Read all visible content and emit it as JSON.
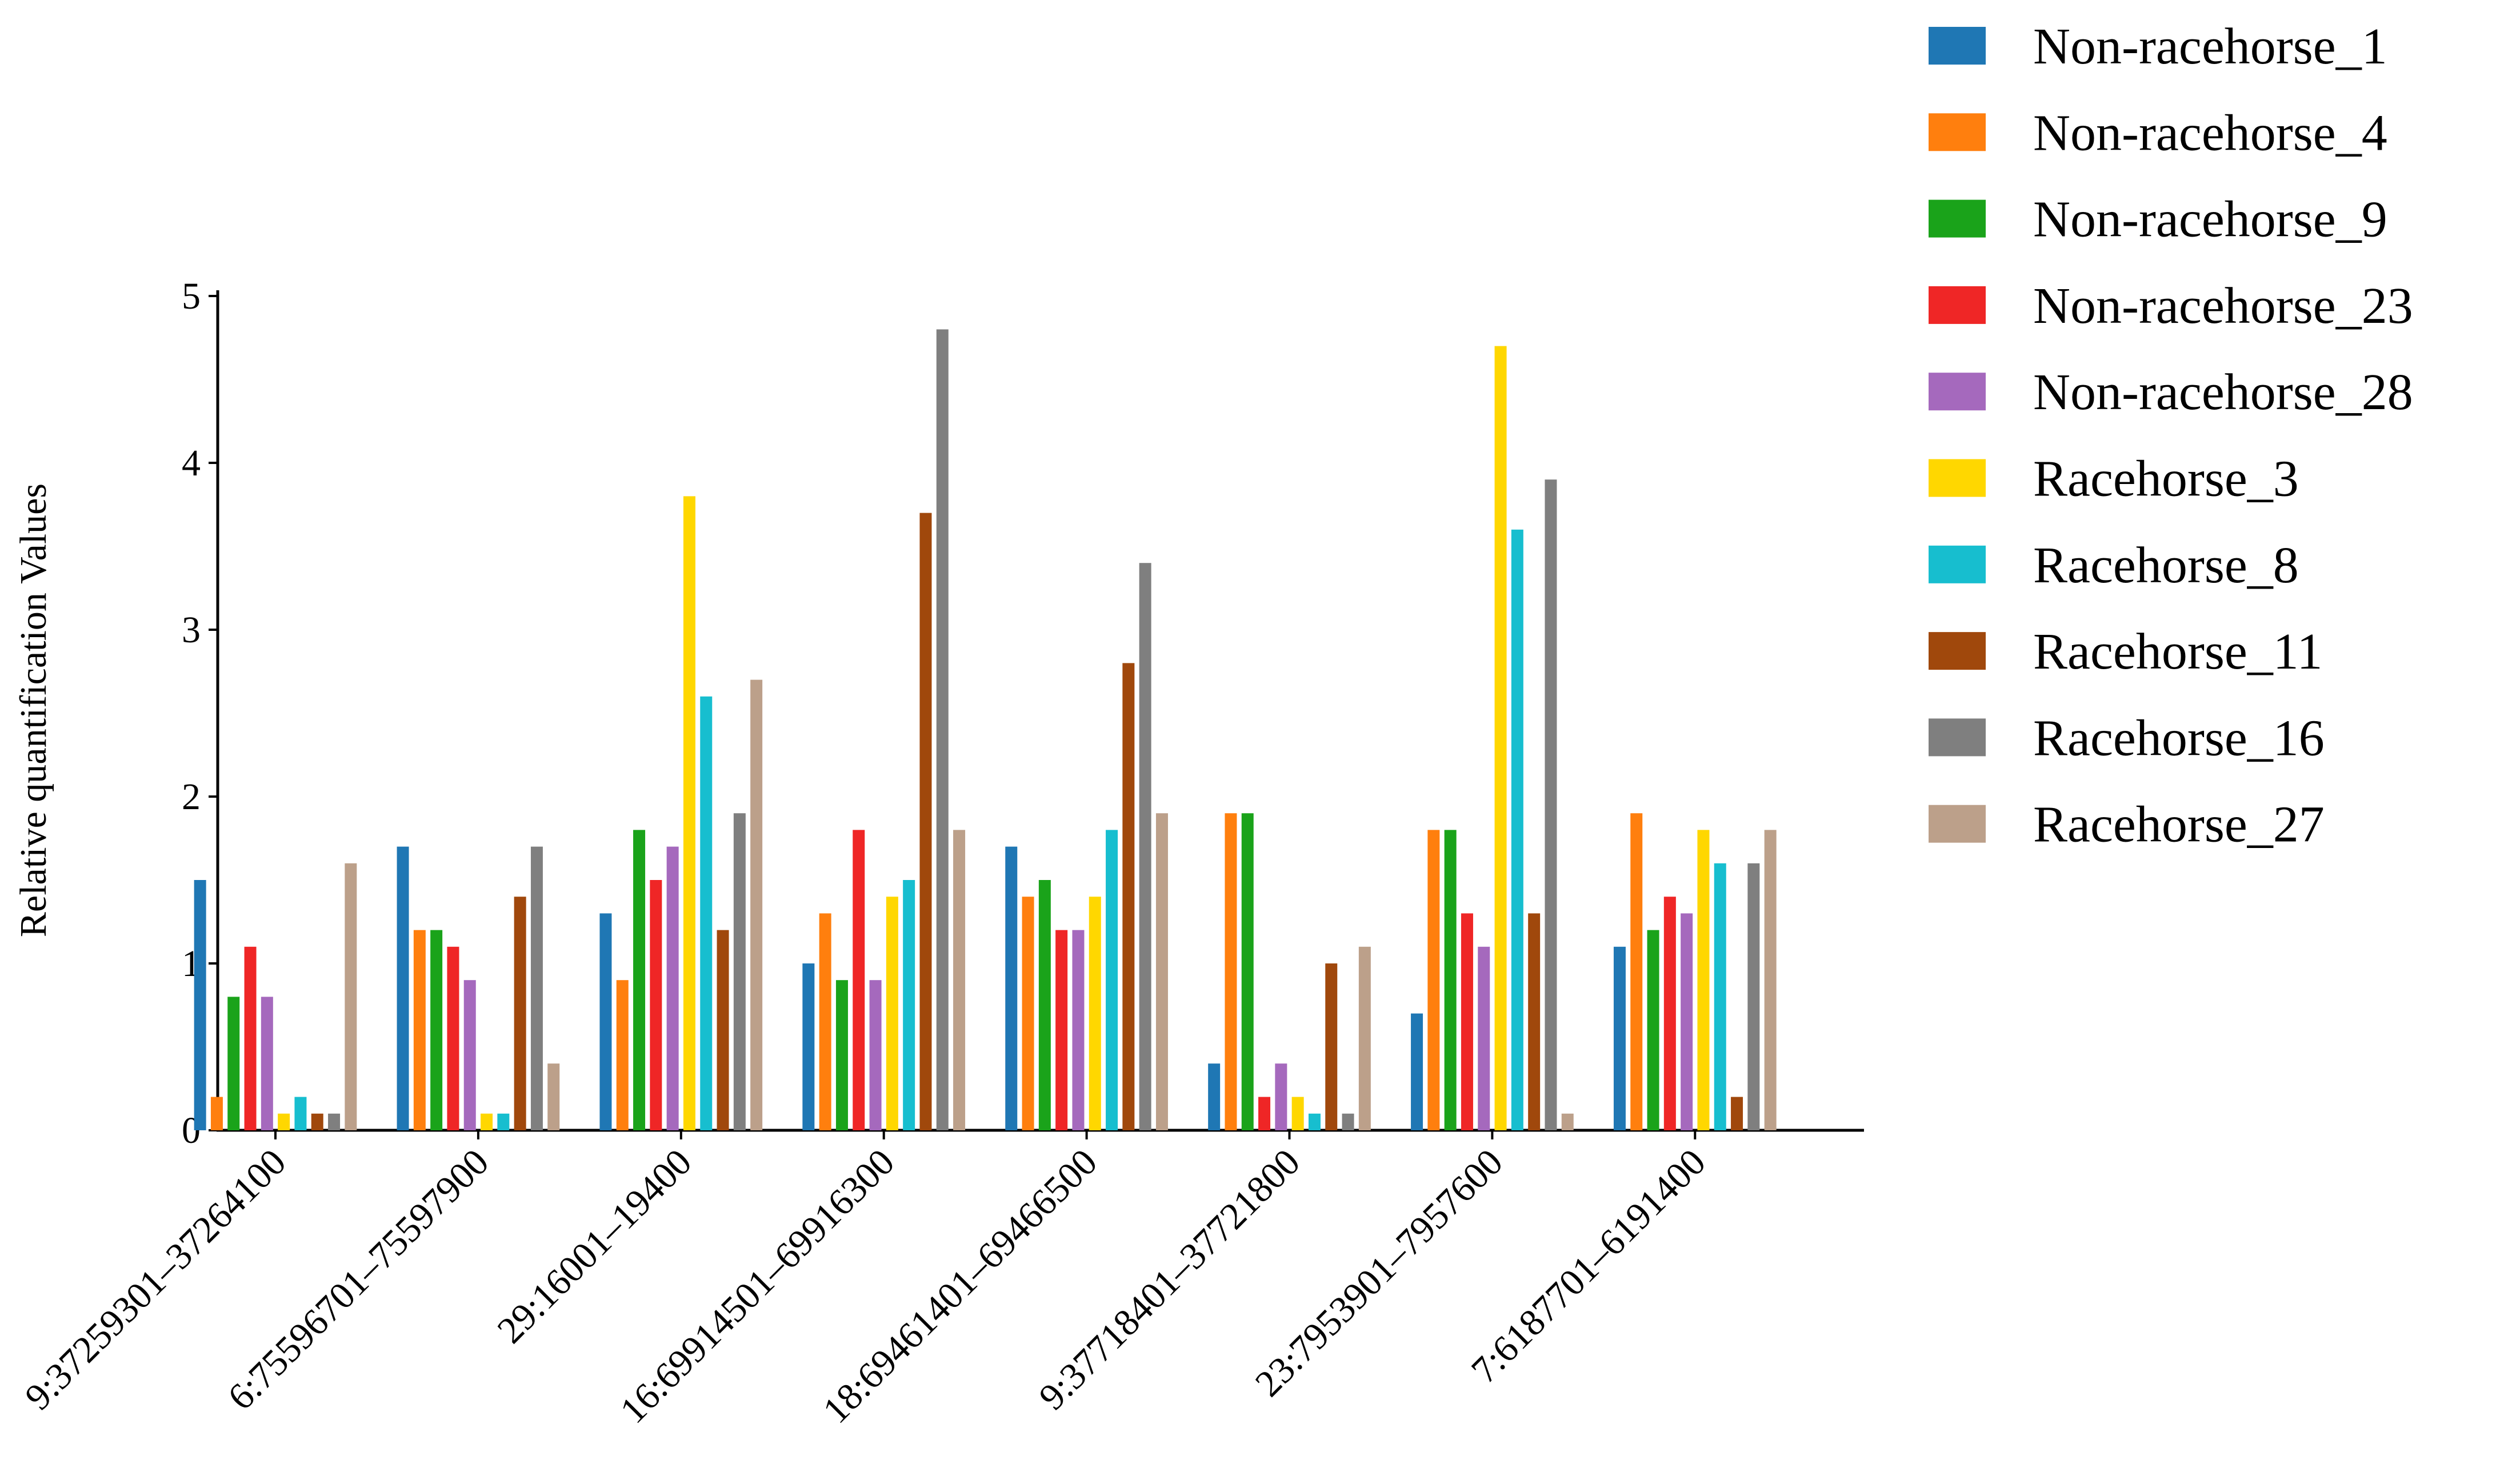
{
  "chart_data": {
    "type": "bar",
    "title": "",
    "xlabel": "",
    "ylabel": "Relative quantification Values",
    "ylim": [
      0,
      5
    ],
    "yticks": [
      "0",
      "1",
      "2",
      "3",
      "4",
      "5"
    ],
    "grid": false,
    "legend_position": "top-right, outside plot",
    "categories": [
      "9:37259301–37264100",
      "6:75596701–75597900",
      "29:16001–19400",
      "16:69914501–69916300",
      "18:69461401–69466500",
      "9:37718401–37721800",
      "23:7953901–7957600",
      "7:6187701–6191400"
    ],
    "series": [
      {
        "name": "Non-racehorse_1",
        "color": "#1f77b4",
        "values": [
          1.5,
          1.7,
          1.3,
          1.0,
          1.7,
          0.4,
          0.7,
          1.1
        ]
      },
      {
        "name": "Non-racehorse_4",
        "color": "#ff7f0e",
        "values": [
          0.2,
          1.2,
          0.9,
          1.3,
          1.4,
          1.9,
          1.8,
          1.9
        ]
      },
      {
        "name": "Non-racehorse_9",
        "color": "#1aa31a",
        "values": [
          0.8,
          1.2,
          1.8,
          0.9,
          1.5,
          1.9,
          1.8,
          1.2
        ]
      },
      {
        "name": "Non-racehorse_23",
        "color": "#ef2626",
        "values": [
          1.1,
          1.1,
          1.5,
          1.8,
          1.2,
          0.2,
          1.3,
          1.4
        ]
      },
      {
        "name": "Non-racehorse_28",
        "color": "#a569bd",
        "values": [
          0.8,
          0.9,
          1.7,
          0.9,
          1.2,
          0.4,
          1.1,
          1.3
        ]
      },
      {
        "name": "Racehorse_3",
        "color": "#ffd700",
        "values": [
          0.1,
          0.1,
          3.8,
          1.4,
          1.4,
          0.2,
          4.7,
          1.8
        ]
      },
      {
        "name": "Racehorse_8",
        "color": "#17becf",
        "values": [
          0.2,
          0.1,
          2.6,
          1.5,
          1.8,
          0.1,
          3.6,
          1.6
        ]
      },
      {
        "name": "Racehorse_11",
        "color": "#a0480c",
        "values": [
          0.1,
          1.4,
          1.2,
          3.7,
          2.8,
          1.0,
          1.3,
          0.2
        ]
      },
      {
        "name": "Racehorse_16",
        "color": "#7f7f7f",
        "values": [
          0.1,
          1.7,
          1.9,
          4.8,
          3.4,
          0.1,
          3.9,
          1.6
        ]
      },
      {
        "name": "Racehorse_27",
        "color": "#bca08a",
        "values": [
          1.6,
          0.4,
          2.7,
          1.8,
          1.9,
          1.1,
          0.1,
          1.8
        ]
      }
    ]
  }
}
